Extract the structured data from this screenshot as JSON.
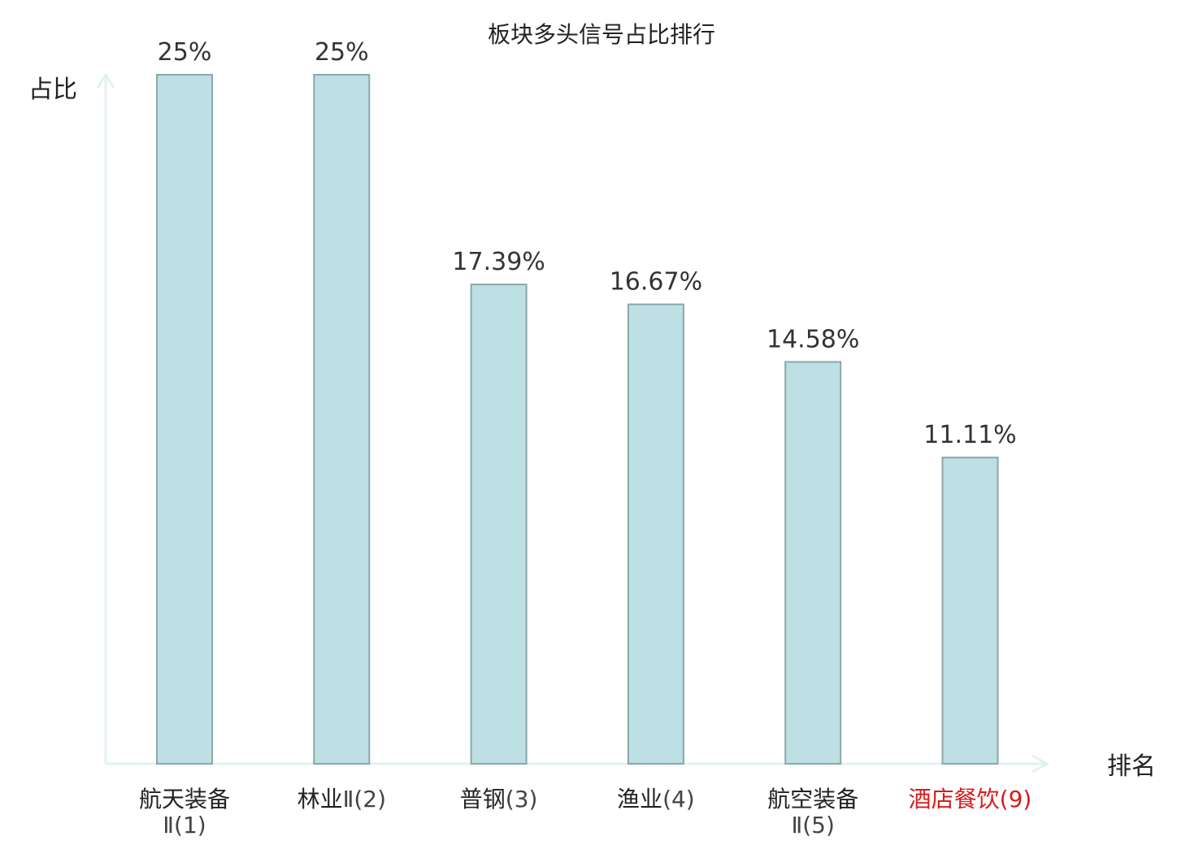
{
  "chart_data": {
    "type": "bar",
    "title": "板块多头信号占比排行",
    "ylabel": "占比",
    "xlabel": "排名",
    "ylim": [
      0,
      25
    ],
    "grid": false,
    "bar_color": "#bce0e3",
    "bar_border_color": "#8aa7aa",
    "axis_color": "#e0f2f0",
    "highlight_color": "#d81b1b",
    "categories": [
      {
        "name_lines": [
          "航天装备"
        ],
        "rank": "Ⅱ(1)",
        "value": 25,
        "label": "25%",
        "highlight": false
      },
      {
        "name_lines": [
          "林业"
        ],
        "rank": "Ⅱ(2)",
        "value": 25,
        "label": "25%",
        "highlight": false
      },
      {
        "name_lines": [
          "普钢"
        ],
        "rank": "(3)",
        "value": 17.39,
        "label": "17.39%",
        "highlight": false
      },
      {
        "name_lines": [
          "渔业"
        ],
        "rank": "(4)",
        "value": 16.67,
        "label": "16.67%",
        "highlight": false
      },
      {
        "name_lines": [
          "航空装备"
        ],
        "rank": "Ⅱ(5)",
        "value": 14.58,
        "label": "14.58%",
        "highlight": false
      },
      {
        "name_lines": [
          "酒店餐饮"
        ],
        "rank": "(9)",
        "value": 11.11,
        "label": "11.11%",
        "highlight": true
      }
    ]
  }
}
